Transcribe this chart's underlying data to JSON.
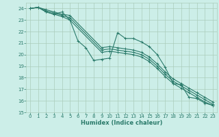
{
  "xlabel": "Humidex (Indice chaleur)",
  "bg_color": "#cceee8",
  "grid_color": "#aaccbb",
  "line_color": "#2a7a6a",
  "xlim": [
    -0.5,
    23.5
  ],
  "ylim": [
    15,
    24.5
  ],
  "yticks": [
    15,
    16,
    17,
    18,
    19,
    20,
    21,
    22,
    23,
    24
  ],
  "xticks": [
    0,
    1,
    2,
    3,
    4,
    5,
    6,
    7,
    8,
    9,
    10,
    11,
    12,
    13,
    14,
    15,
    16,
    17,
    18,
    19,
    20,
    21,
    22,
    23
  ],
  "series": [
    {
      "x": [
        0,
        1,
        2,
        3,
        4,
        5,
        6,
        7,
        8,
        9,
        10,
        11,
        12,
        13,
        14,
        15,
        16,
        17,
        18,
        19,
        20,
        21,
        22,
        23
      ],
      "y": [
        24.0,
        24.1,
        23.7,
        23.5,
        23.7,
        23.0,
        21.2,
        20.6,
        19.5,
        19.6,
        19.7,
        21.9,
        21.4,
        21.4,
        21.1,
        20.7,
        20.0,
        18.9,
        17.5,
        17.4,
        16.3,
        16.2,
        15.8,
        15.6
      ]
    },
    {
      "x": [
        0,
        1,
        2,
        3,
        4,
        5,
        9,
        10,
        11,
        12,
        13,
        14,
        15,
        16,
        17,
        18,
        19,
        20,
        21,
        22,
        23
      ],
      "y": [
        24.0,
        24.1,
        23.7,
        23.5,
        23.3,
        23.0,
        20.2,
        20.3,
        20.2,
        20.1,
        20.0,
        19.8,
        19.4,
        18.8,
        18.1,
        17.5,
        17.1,
        16.7,
        16.3,
        15.9,
        15.6
      ]
    },
    {
      "x": [
        0,
        1,
        2,
        3,
        4,
        5,
        9,
        10,
        11,
        12,
        13,
        14,
        15,
        16,
        17,
        18,
        19,
        20,
        21,
        22,
        23
      ],
      "y": [
        24.0,
        24.1,
        23.8,
        23.6,
        23.4,
        23.2,
        20.4,
        20.5,
        20.4,
        20.3,
        20.2,
        20.0,
        19.6,
        19.0,
        18.3,
        17.7,
        17.3,
        16.9,
        16.5,
        16.1,
        15.7
      ]
    },
    {
      "x": [
        0,
        1,
        2,
        3,
        4,
        5,
        9,
        10,
        11,
        12,
        13,
        14,
        15,
        16,
        17,
        18,
        19,
        20,
        21,
        22,
        23
      ],
      "y": [
        24.0,
        24.1,
        23.9,
        23.7,
        23.5,
        23.4,
        20.6,
        20.7,
        20.6,
        20.5,
        20.4,
        20.2,
        19.8,
        19.2,
        18.5,
        17.9,
        17.5,
        17.1,
        16.7,
        16.3,
        15.9
      ]
    }
  ]
}
